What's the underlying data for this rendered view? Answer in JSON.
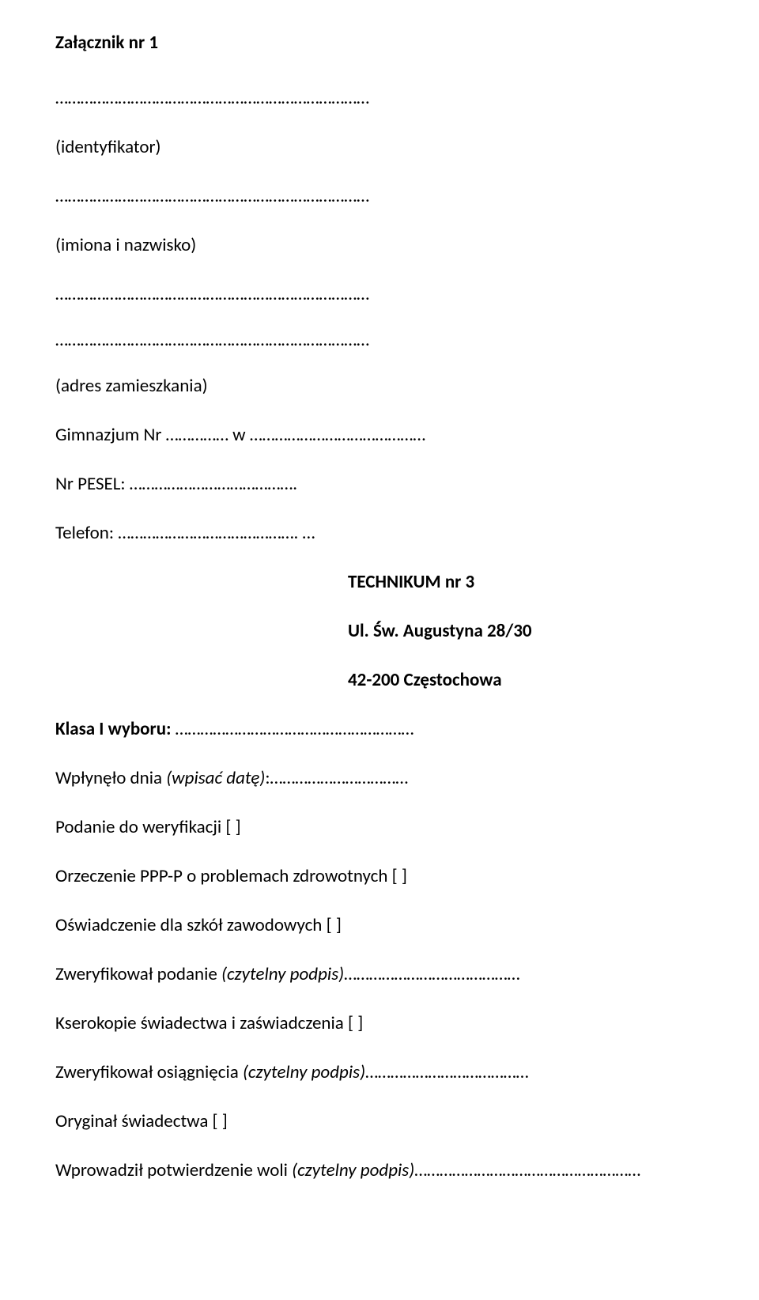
{
  "header": "Załącznik nr 1",
  "fields": {
    "identyfikator_label": "(identyfikator)",
    "imiona_label": "(imiona i nazwisko)",
    "adres_label": "(adres zamieszkania)",
    "gimnazjum_prefix": "Gimnazjum Nr ",
    "gimnazjum_mid": " w ",
    "pesel_label": "Nr PESEL: ",
    "telefon_label": "Telefon: "
  },
  "school": {
    "name": "TECHNIKUM nr 3",
    "street": "Ul. Św. Augustyna 28/30",
    "city": "42-200 Częstochowa"
  },
  "form": {
    "klasa_label": "Klasa I wyboru: ",
    "wplynelo_prefix": "Wpłynęło dnia ",
    "wplynelo_hint": "(wpisać datę)",
    "wplynelo_suffix": ":",
    "podanie": "Podanie do weryfikacji [ ]",
    "orzeczenie": "Orzeczenie PPP-P o problemach zdrowotnych [ ]",
    "oswiadczenie": "Oświadczenie dla szkół zawodowych [ ]",
    "zweryfikowal_podanie_prefix": "Zweryfikował podanie ",
    "zweryfikowal_podanie_hint": "(czytelny podpis)",
    "kserokopie": "Kserokopie świadectwa i zaświadczenia [ ]",
    "zweryfikowal_osiag_prefix": "Zweryfikował osiągnięcia ",
    "zweryfikowal_osiag_hint": "(czytelny podpis)",
    "oryginal": "Oryginał świadectwa [ ]",
    "wprowadzil_prefix": "Wprowadził potwierdzenie woli ",
    "wprowadzil_hint": "(czytelny podpis)"
  }
}
